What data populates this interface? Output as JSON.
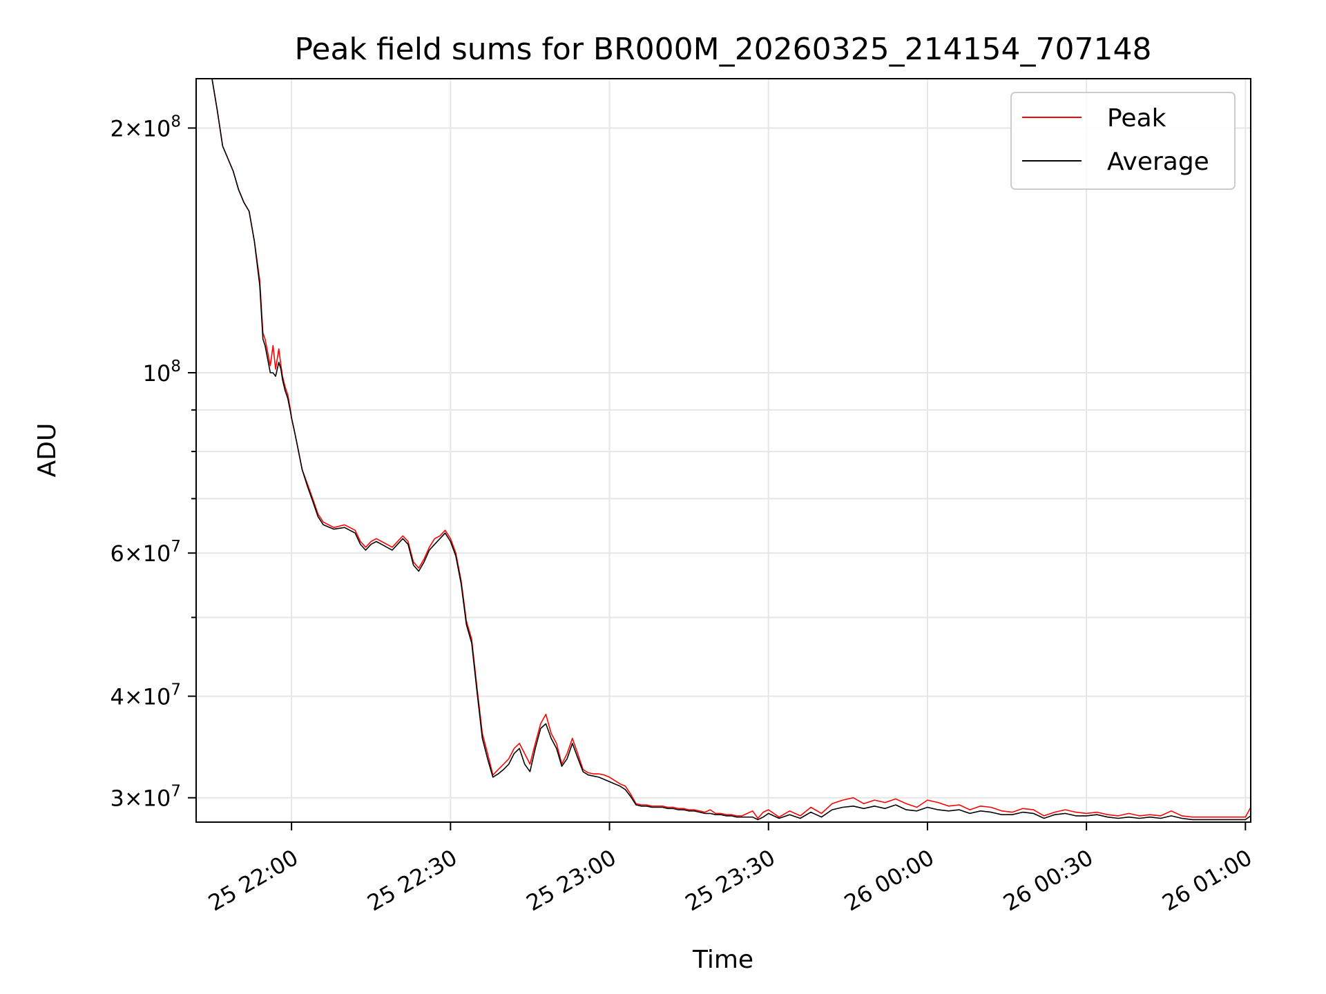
{
  "chart_data": {
    "type": "line",
    "title": "Peak field sums for BR000M_20260325_214154_707148",
    "xlabel": "Time",
    "ylabel": "ADU",
    "yscale": "log",
    "grid": true,
    "legend_position": "top-right",
    "xlim_minutes_from_2026_03_25_21_42": [
      0,
      199
    ],
    "ylim": [
      28000000,
      230000000
    ],
    "x_ticks": [
      {
        "minute": 18,
        "label": "25 22:00"
      },
      {
        "minute": 48,
        "label": "25 22:30"
      },
      {
        "minute": 78,
        "label": "25 23:00"
      },
      {
        "minute": 108,
        "label": "25 23:30"
      },
      {
        "minute": 138,
        "label": "26 00:00"
      },
      {
        "minute": 168,
        "label": "26 00:30"
      },
      {
        "minute": 198,
        "label": "26 01:00"
      }
    ],
    "y_ticks_major": [
      {
        "value": 30000000,
        "mantissa": "3",
        "exponent": "7"
      },
      {
        "value": 40000000,
        "mantissa": "4",
        "exponent": "7"
      },
      {
        "value": 60000000,
        "mantissa": "6",
        "exponent": "7"
      },
      {
        "value": 100000000,
        "mantissa": "",
        "exponent": "8"
      },
      {
        "value": 200000000,
        "mantissa": "2",
        "exponent": "8"
      }
    ],
    "y_ticks_minor": [
      50000000,
      70000000,
      80000000,
      90000000
    ],
    "series": [
      {
        "name": "Peak",
        "color": "#ff0000",
        "x": [
          0,
          3,
          4,
          5,
          7,
          8,
          9,
          10,
          11,
          12,
          12.6,
          13,
          14,
          14.5,
          15,
          15.6,
          16,
          16.3,
          16.8,
          17.3,
          17.8,
          18,
          18.5,
          19,
          20,
          21,
          22,
          23,
          24,
          26,
          28,
          30,
          31,
          32,
          33,
          34,
          35,
          36,
          37,
          38,
          39,
          40,
          41,
          42,
          43,
          44,
          45,
          46,
          47,
          48,
          49,
          50,
          51,
          52,
          53,
          54,
          55,
          56,
          57,
          58,
          59,
          60,
          61,
          62,
          63,
          64,
          65,
          66,
          67,
          68,
          69,
          70,
          71,
          72,
          73,
          74,
          75,
          76,
          77,
          78,
          79,
          80,
          81,
          82,
          83,
          84,
          85,
          86,
          87,
          88,
          89,
          90,
          91,
          92,
          93,
          94,
          95,
          96,
          97,
          98,
          99,
          100,
          101,
          102,
          103,
          104,
          105,
          106,
          107,
          108,
          110,
          112,
          114,
          116,
          118,
          120,
          122,
          124,
          126,
          128,
          130,
          132,
          134,
          136,
          138,
          140,
          142,
          144,
          146,
          148,
          150,
          152,
          154,
          156,
          158,
          160,
          162,
          164,
          166,
          168,
          170,
          172,
          174,
          176,
          178,
          180,
          182,
          184,
          186,
          188,
          190,
          192,
          194,
          196,
          198,
          199
        ],
        "values": [
          230000000,
          230000000,
          210000000,
          190000000,
          177000000,
          168000000,
          162000000,
          158000000,
          145000000,
          130000000,
          112000000,
          110000000,
          102000000,
          108000000,
          101000000,
          107000000,
          102000000,
          99000000,
          96000000,
          94000000,
          90000000,
          88000000,
          85000000,
          82000000,
          76000000,
          73000000,
          70000000,
          67000000,
          65500000,
          64500000,
          65000000,
          64000000,
          62000000,
          61000000,
          62000000,
          62500000,
          62000000,
          61500000,
          61000000,
          62000000,
          63000000,
          62000000,
          58500000,
          57500000,
          59000000,
          61000000,
          62500000,
          63000000,
          64000000,
          62500000,
          60000000,
          55500000,
          49500000,
          47000000,
          41000000,
          36000000,
          34000000,
          32000000,
          32500000,
          33000000,
          33500000,
          34500000,
          35000000,
          34000000,
          33000000,
          35000000,
          37000000,
          38000000,
          36000000,
          35000000,
          33000000,
          34000000,
          35500000,
          34000000,
          32500000,
          32200000,
          32100000,
          32100000,
          32000000,
          31800000,
          31500000,
          31200000,
          31000000,
          30300000,
          29500000,
          29400000,
          29400000,
          29300000,
          29300000,
          29300000,
          29200000,
          29200000,
          29100000,
          29100000,
          29000000,
          29000000,
          28900000,
          28800000,
          29000000,
          28700000,
          28700000,
          28600000,
          28600000,
          28500000,
          28500000,
          28700000,
          28900000,
          28300000,
          28800000,
          29000000,
          28400000,
          28900000,
          28500000,
          29200000,
          28700000,
          29500000,
          29800000,
          30000000,
          29500000,
          29800000,
          29600000,
          29900000,
          29500000,
          29200000,
          29800000,
          29600000,
          29300000,
          29400000,
          29000000,
          29300000,
          29200000,
          28900000,
          28800000,
          29100000,
          29000000,
          28500000,
          28800000,
          29000000,
          28800000,
          28700000,
          28800000,
          28600000,
          28500000,
          28700000,
          28500000,
          28600000,
          28500000,
          28900000,
          28500000,
          28400000,
          28400000,
          28400000,
          28400000,
          28400000,
          28400000,
          29200000
        ]
      },
      {
        "name": "Average",
        "color": "#000000",
        "x": [
          0,
          3,
          4,
          5,
          7,
          8,
          9,
          10,
          11,
          12,
          12.6,
          13,
          14,
          14.5,
          15,
          15.6,
          16,
          16.3,
          16.8,
          17.3,
          17.8,
          18,
          18.5,
          19,
          20,
          21,
          22,
          23,
          24,
          26,
          28,
          30,
          31,
          32,
          33,
          34,
          35,
          36,
          37,
          38,
          39,
          40,
          41,
          42,
          43,
          44,
          45,
          46,
          47,
          48,
          49,
          50,
          51,
          52,
          53,
          54,
          55,
          56,
          57,
          58,
          59,
          60,
          61,
          62,
          63,
          64,
          65,
          66,
          67,
          68,
          69,
          70,
          71,
          72,
          73,
          74,
          75,
          76,
          77,
          78,
          79,
          80,
          81,
          82,
          83,
          84,
          85,
          86,
          87,
          88,
          89,
          90,
          91,
          92,
          93,
          94,
          95,
          96,
          97,
          98,
          99,
          100,
          101,
          102,
          103,
          104,
          105,
          106,
          107,
          108,
          110,
          112,
          114,
          116,
          118,
          120,
          122,
          124,
          126,
          128,
          130,
          132,
          134,
          136,
          138,
          140,
          142,
          144,
          146,
          148,
          150,
          152,
          154,
          156,
          158,
          160,
          162,
          164,
          166,
          168,
          170,
          172,
          174,
          176,
          178,
          180,
          182,
          184,
          186,
          188,
          190,
          192,
          194,
          196,
          198,
          199
        ],
        "values": [
          230000000,
          230000000,
          210000000,
          190000000,
          177000000,
          168000000,
          162000000,
          158000000,
          145000000,
          128000000,
          110000000,
          108000000,
          100000000,
          100000000,
          99000000,
          103000000,
          101000000,
          98000000,
          95000000,
          93000000,
          89500000,
          88000000,
          85000000,
          82000000,
          76000000,
          72500000,
          69500000,
          66500000,
          65000000,
          64200000,
          64500000,
          63500000,
          61500000,
          60500000,
          61500000,
          62000000,
          61500000,
          61000000,
          60500000,
          61500000,
          62500000,
          61500000,
          58000000,
          57000000,
          58500000,
          60500000,
          61500000,
          62500000,
          63500000,
          62000000,
          59500000,
          55000000,
          49000000,
          46500000,
          40500000,
          35500000,
          33500000,
          31800000,
          32100000,
          32500000,
          33000000,
          34000000,
          34500000,
          33000000,
          32300000,
          34500000,
          36500000,
          37000000,
          35500000,
          34500000,
          32800000,
          33500000,
          35000000,
          33600000,
          32300000,
          32000000,
          31900000,
          31800000,
          31600000,
          31400000,
          31200000,
          31000000,
          30700000,
          30100000,
          29400000,
          29300000,
          29300000,
          29200000,
          29200000,
          29200000,
          29100000,
          29100000,
          29000000,
          29000000,
          28900000,
          28900000,
          28800000,
          28700000,
          28700000,
          28600000,
          28600000,
          28500000,
          28500000,
          28400000,
          28400000,
          28400000,
          28400000,
          28200000,
          28400000,
          28700000,
          28300000,
          28600000,
          28300000,
          28800000,
          28400000,
          29000000,
          29200000,
          29300000,
          29100000,
          29300000,
          29100000,
          29400000,
          29000000,
          28900000,
          29200000,
          29000000,
          28900000,
          29000000,
          28700000,
          28900000,
          28800000,
          28600000,
          28600000,
          28800000,
          28700000,
          28300000,
          28600000,
          28700000,
          28500000,
          28500000,
          28600000,
          28400000,
          28300000,
          28400000,
          28300000,
          28400000,
          28300000,
          28500000,
          28300000,
          28200000,
          28200000,
          28200000,
          28200000,
          28200000,
          28200000,
          28500000
        ]
      }
    ]
  }
}
